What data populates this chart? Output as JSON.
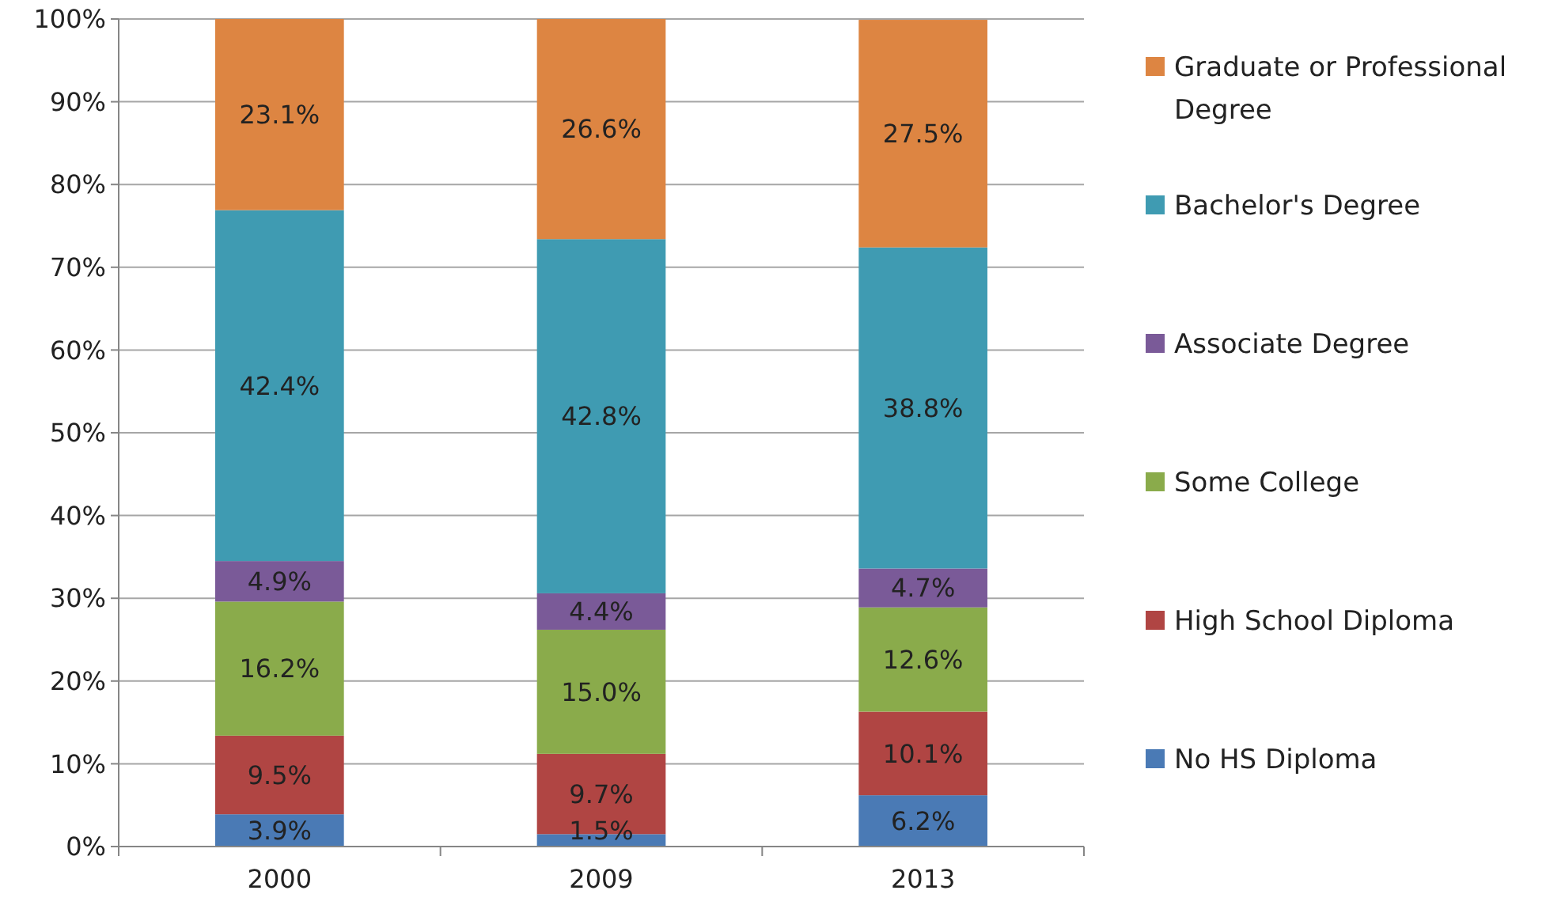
{
  "chart_data": {
    "type": "bar",
    "stacked": true,
    "categories": [
      "2000",
      "2009",
      "2013"
    ],
    "series": [
      {
        "name": "No HS Diploma",
        "color": "#4a7ab5",
        "values": [
          3.9,
          1.5,
          6.2
        ],
        "value_labels": [
          "3.9%",
          "1.5%",
          "6.2%"
        ]
      },
      {
        "name": "High School Diploma",
        "color": "#b04543",
        "values": [
          9.5,
          9.7,
          10.1
        ],
        "value_labels": [
          "9.5%",
          "9.7%",
          "10.1%"
        ]
      },
      {
        "name": "Some College",
        "color": "#8aab4b",
        "values": [
          16.2,
          15.0,
          12.6
        ],
        "value_labels": [
          "16.2%",
          "15.0%",
          "12.6%"
        ]
      },
      {
        "name": "Associate Degree",
        "color": "#7a5a98",
        "values": [
          4.9,
          4.4,
          4.7
        ],
        "value_labels": [
          "4.9%",
          "4.4%",
          "4.7%"
        ]
      },
      {
        "name": "Bachelor's Degree",
        "color": "#3f9bb2",
        "values": [
          42.4,
          42.8,
          38.8
        ],
        "value_labels": [
          "42.4%",
          "42.8%",
          "38.8%"
        ]
      },
      {
        "name": "Graduate or Professional Degree",
        "color": "#dd8542",
        "values": [
          23.1,
          26.6,
          27.5
        ],
        "value_labels": [
          "23.1%",
          "26.6%",
          "27.5%"
        ]
      }
    ],
    "ylim": [
      0,
      100
    ],
    "yticks": [
      {
        "value": 0,
        "label": "0%"
      },
      {
        "value": 10,
        "label": "10%"
      },
      {
        "value": 20,
        "label": "20%"
      },
      {
        "value": 30,
        "label": "30%"
      },
      {
        "value": 40,
        "label": "40%"
      },
      {
        "value": 50,
        "label": "50%"
      },
      {
        "value": 60,
        "label": "60%"
      },
      {
        "value": 70,
        "label": "70%"
      },
      {
        "value": 80,
        "label": "80%"
      },
      {
        "value": 90,
        "label": "90%"
      },
      {
        "value": 100,
        "label": "100%"
      }
    ],
    "grid": "y",
    "legend": "right"
  }
}
